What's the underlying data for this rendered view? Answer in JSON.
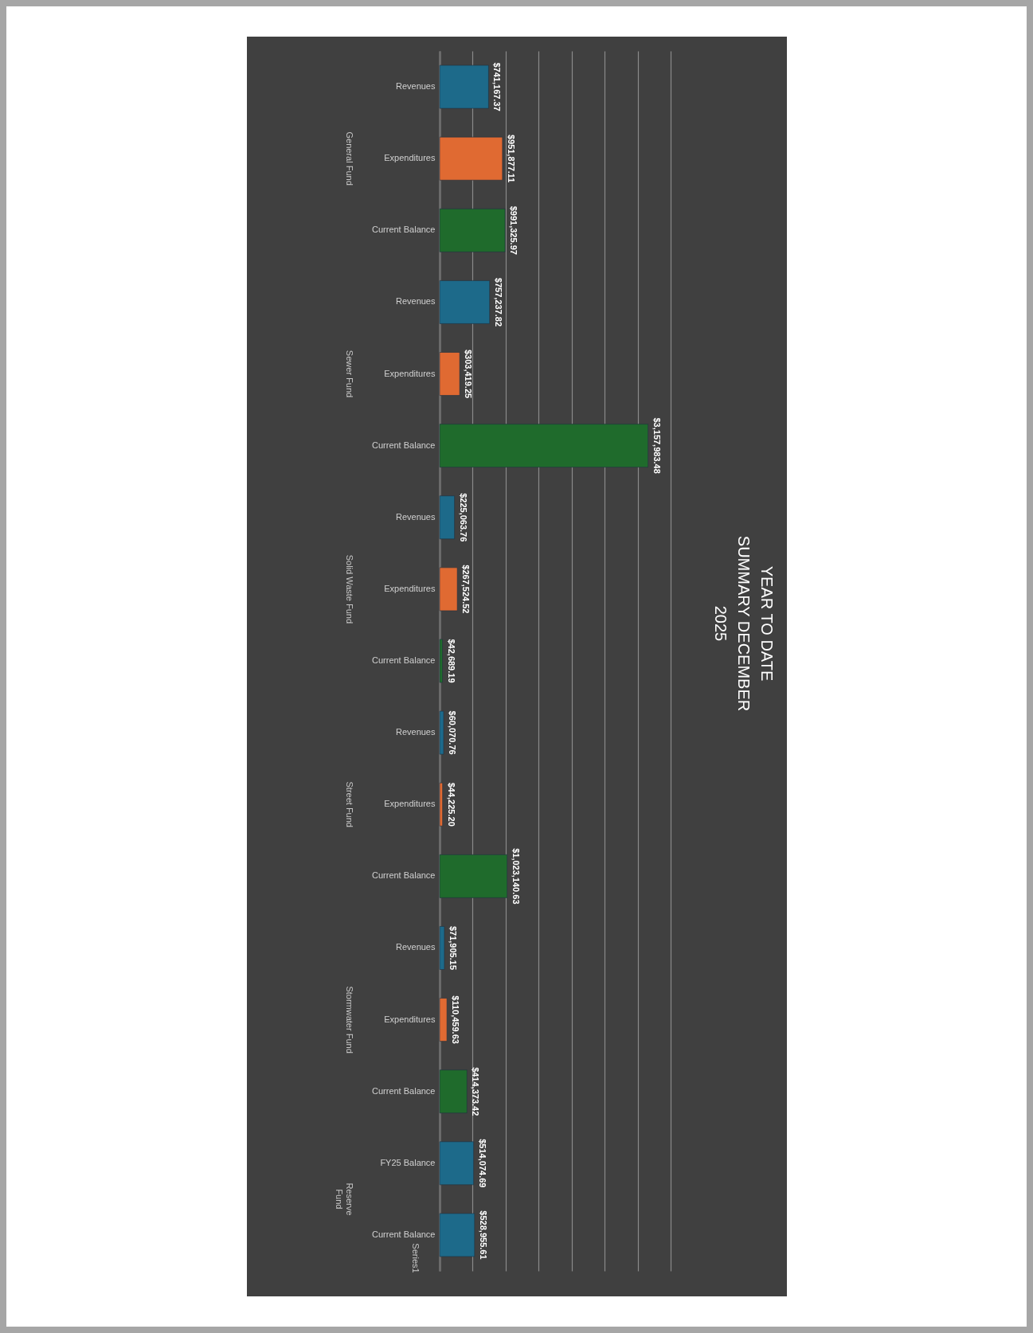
{
  "chart_data": {
    "type": "bar",
    "orientation": "horizontal",
    "title": "YEAR TO DATE\nSUMMARY DECEMBER\n2025",
    "categories": [
      "Revenues",
      "Expenditures",
      "Current Balance",
      "Revenues",
      "Expenditures",
      "Current Balance",
      "Revenues",
      "Expenditures",
      "Current Balance",
      "Revenues",
      "Expenditures",
      "Current Balance",
      "Revenues",
      "Expenditures",
      "Current Balance",
      "FY25 Balance",
      "Current Balance"
    ],
    "values": [
      741167.37,
      951877.11,
      991325.97,
      757237.82,
      303419.25,
      3157983.48,
      225063.76,
      267524.52,
      42689.19,
      60070.76,
      44225.2,
      1023140.63,
      71905.15,
      110459.63,
      414373.42,
      514074.69,
      528955.61
    ],
    "value_labels": [
      "$741,167.37",
      "$951,877.11",
      "$991,325.97",
      "$757,237.82",
      "$303,419.25",
      "$3,157,983.48",
      "$225,063.76",
      "$267,524.52",
      "$42,689.19",
      "$60,070.76",
      "$44,225.20",
      "$1,023,140.63",
      "$71,905.15",
      "$110,459.63",
      "$414,373.42",
      "$514,074.69",
      "$528,955.61"
    ],
    "colors": [
      "#1d6a8a",
      "#e06a32",
      "#1f6b2c",
      "#1d6a8a",
      "#e06a32",
      "#1f6b2c",
      "#1d6a8a",
      "#e06a32",
      "#1f6b2c",
      "#1d6a8a",
      "#e06a32",
      "#1f6b2c",
      "#1d6a8a",
      "#e06a32",
      "#1f6b2c",
      "#1d6a8a",
      "#1d6a8a"
    ],
    "xlim": [
      0,
      3500000
    ],
    "xticks": [
      {
        "value": 0,
        "label": null
      },
      {
        "value": 500000,
        "label": null
      },
      {
        "value": 1000000,
        "label": null
      },
      {
        "value": 1500000,
        "label": null
      },
      {
        "value": 2000000,
        "label": null
      },
      {
        "value": 2500000,
        "label": null
      },
      {
        "value": 3000000,
        "label": null
      },
      {
        "value": 3500000,
        "label": null
      }
    ],
    "tick_labels": "y",
    "grid": "x",
    "annotations": [
      "General Fund",
      "Sewer Fund",
      "Solid Waste Fund",
      "Street Fund",
      "Stormwater Fund",
      "Reserve\nFund",
      "Series1"
    ]
  }
}
